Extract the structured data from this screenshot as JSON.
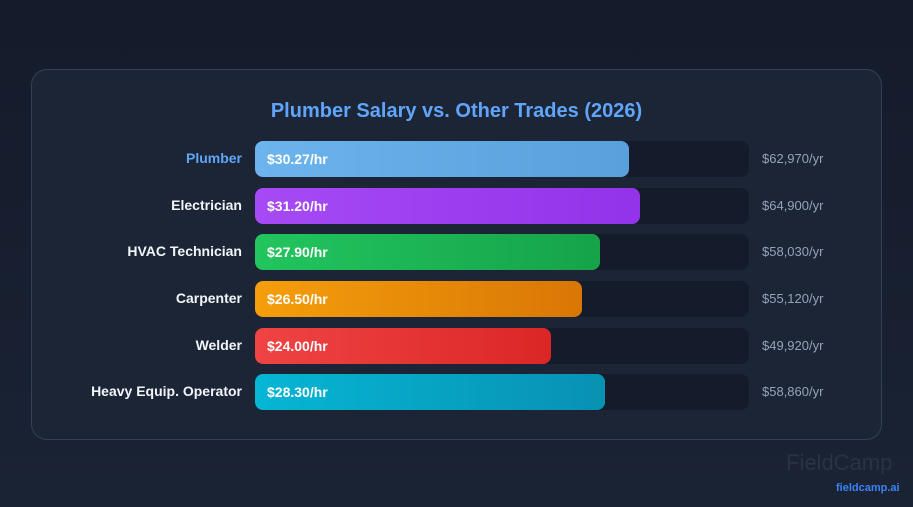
{
  "chart_data": {
    "type": "bar",
    "orientation": "horizontal",
    "title": "Plumber Salary vs. Other Trades (2026)",
    "xlim": [
      0,
      40
    ],
    "categories": [
      "Plumber",
      "Electrician",
      "HVAC Technician",
      "Carpenter",
      "Welder",
      "Heavy Equip. Operator"
    ],
    "values": [
      30.27,
      31.2,
      27.9,
      26.5,
      24.0,
      28.3
    ],
    "value_labels": [
      "$30.27/hr",
      "$31.20/hr",
      "$27.90/hr",
      "$26.50/hr",
      "$24.00/hr",
      "$28.30/hr"
    ],
    "annual_labels": [
      "$62,970/yr",
      "$64,900/yr",
      "$58,030/yr",
      "$55,120/yr",
      "$49,920/yr",
      "$58,860/yr"
    ],
    "colors": [
      [
        "#6cb4ee",
        "#5aa0dc"
      ],
      [
        "#a64af5",
        "#9333ea"
      ],
      [
        "#22c55e",
        "#16a34a"
      ],
      [
        "#f59e0b",
        "#d97706"
      ],
      [
        "#ef4444",
        "#dc2626"
      ],
      [
        "#06b6d4",
        "#0891b2"
      ]
    ],
    "highlight_color": "#60a5fa"
  },
  "branding": {
    "logo": "FieldCamp",
    "url": "fieldcamp.ai"
  }
}
